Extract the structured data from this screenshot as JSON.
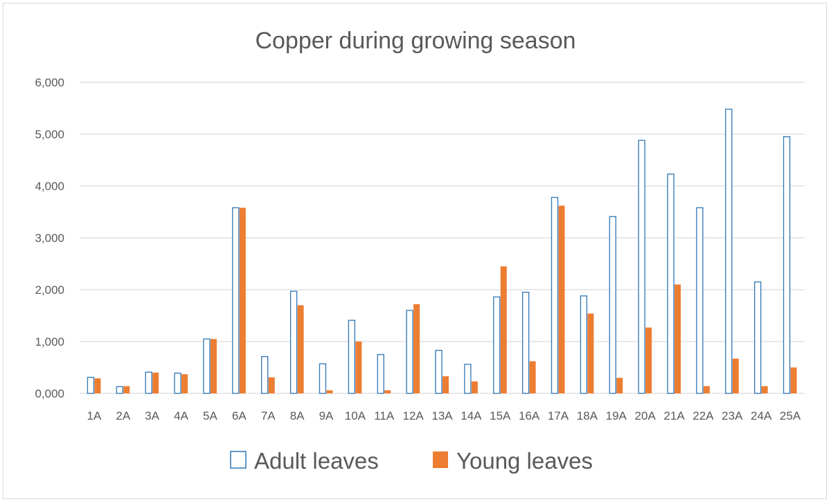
{
  "chart_data": {
    "type": "bar",
    "title": "Copper during growing season",
    "xlabel": "",
    "ylabel": "",
    "ylim": [
      0,
      6
    ],
    "yticks": [
      "0,000",
      "1,000",
      "2,000",
      "3,000",
      "4,000",
      "5,000",
      "6,000"
    ],
    "grid": true,
    "legend": "bottom",
    "categories": [
      "1A",
      "2A",
      "3A",
      "4A",
      "5A",
      "6A",
      "7A",
      "8A",
      "9A",
      "10A",
      "11A",
      "12A",
      "13A",
      "14A",
      "15A",
      "16A",
      "17A",
      "18A",
      "19A",
      "20A",
      "21A",
      "22A",
      "23A",
      "24A",
      "25A"
    ],
    "series": [
      {
        "name": "Adult leaves",
        "style": "outline",
        "stroke": "#2e75b6",
        "fill": "#ffffff",
        "values": [
          0.31,
          0.13,
          0.41,
          0.39,
          1.05,
          3.58,
          0.71,
          1.97,
          0.57,
          1.41,
          0.75,
          1.6,
          0.83,
          0.56,
          1.86,
          1.95,
          3.78,
          1.88,
          3.41,
          4.88,
          4.23,
          3.58,
          5.48,
          2.15,
          4.95
        ]
      },
      {
        "name": "Young leaves",
        "style": "solid",
        "stroke": "#ed7d31",
        "fill": "#ed7d31",
        "values": [
          0.29,
          0.14,
          0.4,
          0.37,
          1.05,
          3.58,
          0.31,
          1.7,
          0.06,
          1.0,
          0.06,
          1.72,
          0.33,
          0.23,
          2.45,
          0.62,
          3.62,
          1.54,
          0.3,
          1.27,
          2.1,
          0.14,
          0.67,
          0.14,
          0.5
        ]
      }
    ],
    "colors": {
      "grid": "#d9d9d9",
      "axis": "#d9d9d9",
      "text": "#595959"
    }
  }
}
